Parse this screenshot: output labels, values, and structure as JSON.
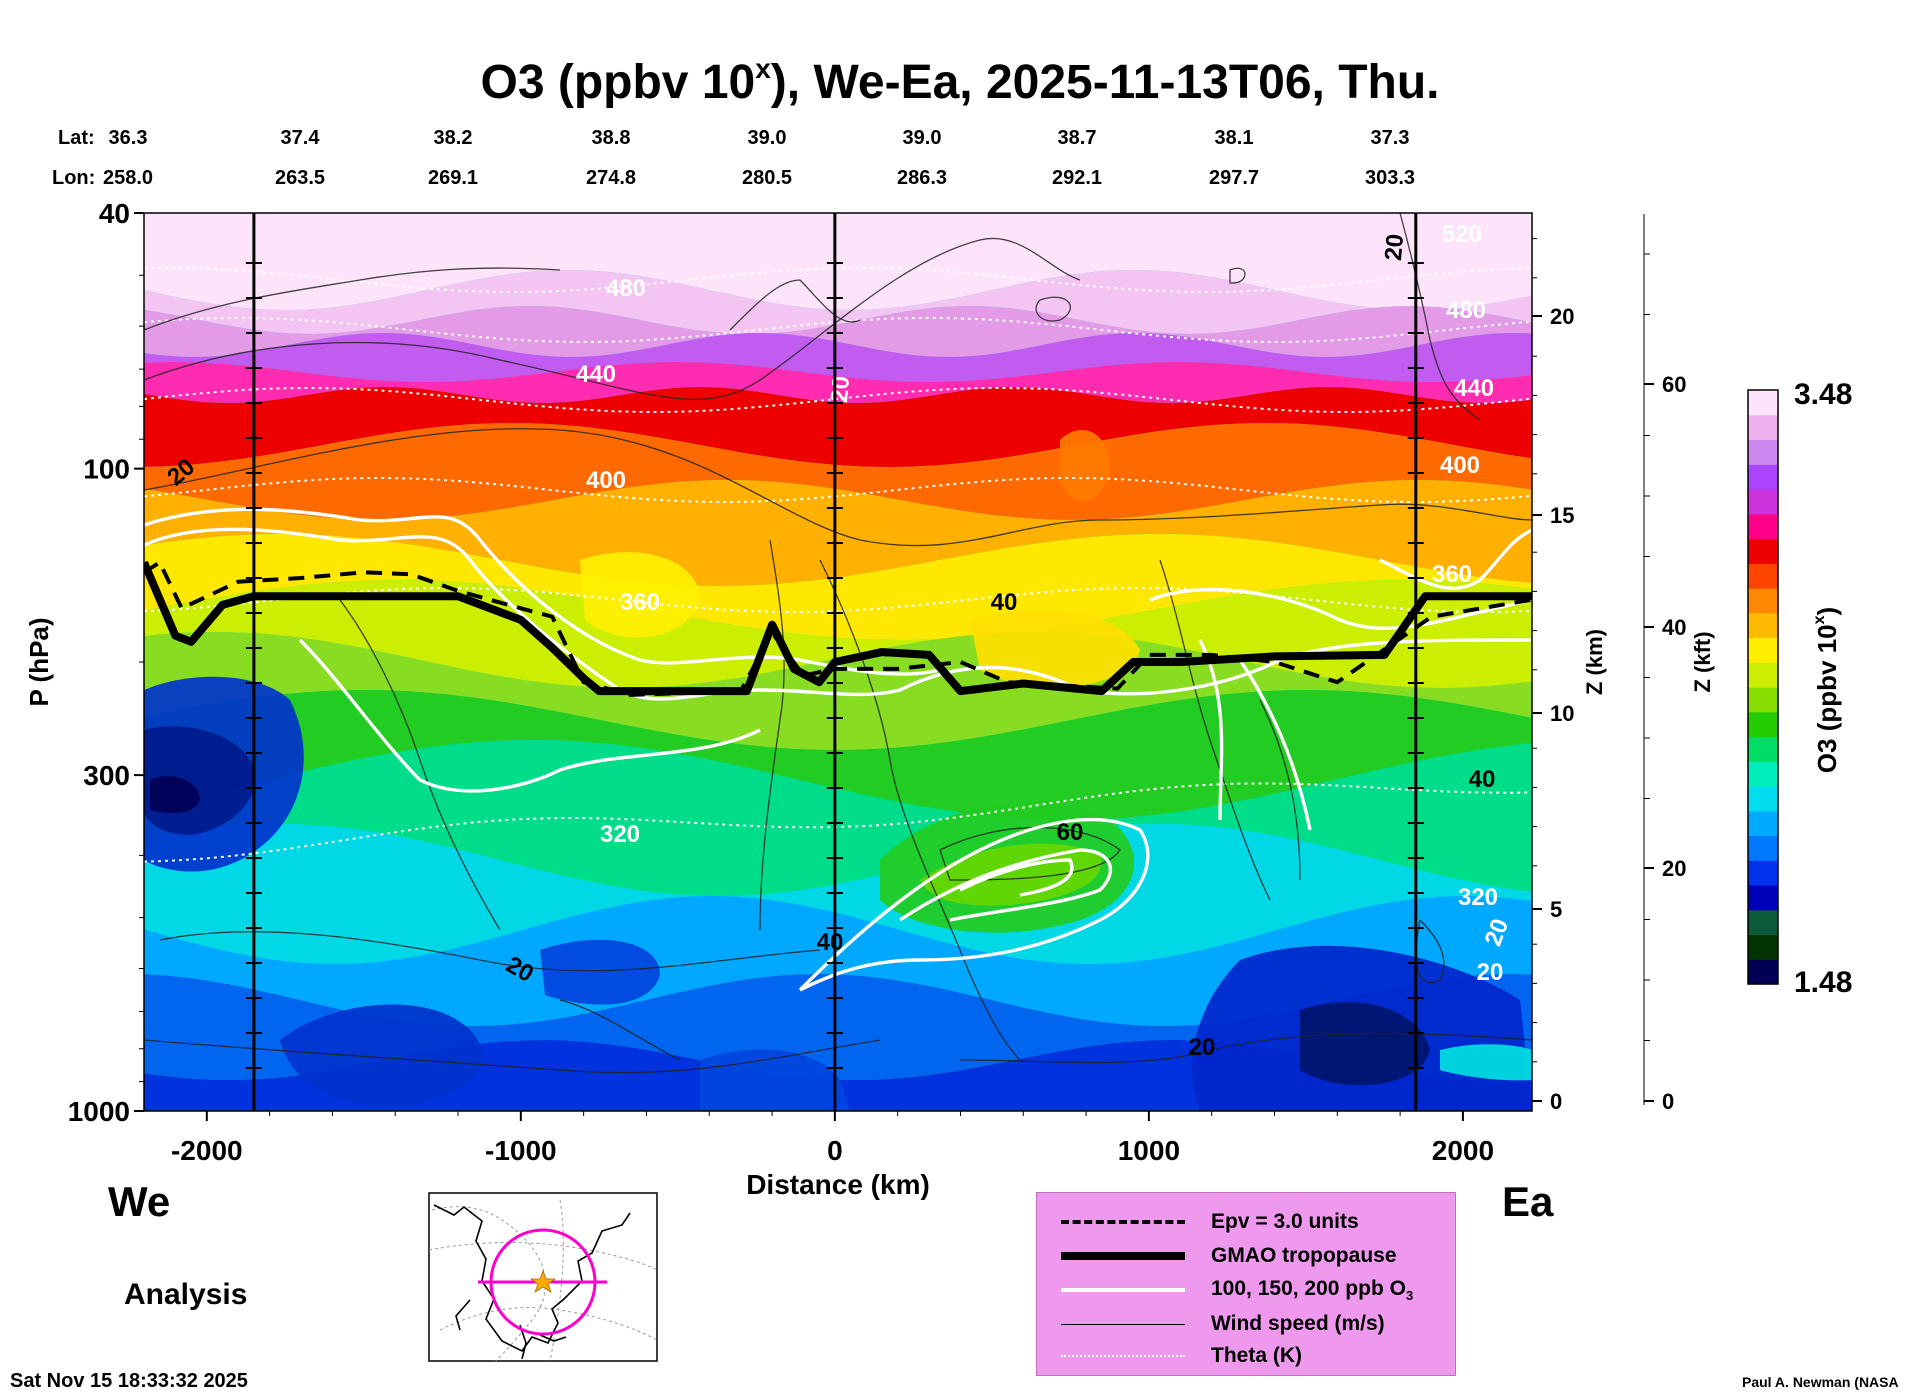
{
  "chart_data": {
    "type": "heatmap",
    "title_prefix": "O3 (ppbv 10",
    "title_sup": "x",
    "title_suffix": "), We-Ea, 2025-11-13T06, Thu.",
    "xlabel": "Distance (km)",
    "ylabel": "P (hPa)",
    "xlim": [
      -2200,
      2220
    ],
    "ylim_hpa": [
      1000,
      40
    ],
    "x_ticks": [
      -2000,
      -1000,
      0,
      1000,
      2000
    ],
    "y_ticks": [
      {
        "value": 40,
        "label": "40"
      },
      {
        "value": 100,
        "label": "100"
      },
      {
        "value": 300,
        "label": "300"
      },
      {
        "value": 1000,
        "label": "1000"
      }
    ],
    "z_km_label": "Z (km)",
    "z_km_ticks": [
      {
        "value": 0,
        "label": "0"
      },
      {
        "value": 5,
        "label": "5"
      },
      {
        "value": 10,
        "label": "10"
      },
      {
        "value": 15,
        "label": "15"
      },
      {
        "value": 20,
        "label": "20"
      }
    ],
    "z_kft_label": "Z (kft)",
    "z_kft_ticks": [
      {
        "value": 0,
        "label": "0"
      },
      {
        "value": 20,
        "label": "20"
      },
      {
        "value": 40,
        "label": "40"
      },
      {
        "value": 60,
        "label": "60"
      }
    ],
    "lat_label": "Lat:",
    "lon_label": "Lon:",
    "coords": [
      {
        "x": -2200,
        "lat": "36.3",
        "lon": "258.0"
      },
      {
        "x": -1700,
        "lat": "37.4",
        "lon": "263.5"
      },
      {
        "x": -1200,
        "lat": "38.2",
        "lon": "269.1"
      },
      {
        "x": -700,
        "lat": "38.8",
        "lon": "274.8"
      },
      {
        "x": -200,
        "lat": "39.0",
        "lon": "280.5"
      },
      {
        "x": 300,
        "lat": "39.0",
        "lon": "286.3"
      },
      {
        "x": 800,
        "lat": "38.7",
        "lon": "292.1"
      },
      {
        "x": 1300,
        "lat": "38.1",
        "lon": "297.7"
      },
      {
        "x": 1800,
        "lat": "37.3",
        "lon": "303.3"
      }
    ],
    "vertical_markers_km": [
      -1850,
      0,
      1850
    ],
    "colorbar": {
      "label_prefix": "O3 (ppbv 10",
      "label_sup": "x",
      "label_suffix": ")",
      "min": 1.48,
      "max": 3.48,
      "min_label": "1.48",
      "max_label": "3.48",
      "colors": [
        "#000055",
        "#003300",
        "#0b5a3a",
        "#0000bb",
        "#0033ee",
        "#0077ff",
        "#00aaff",
        "#00ddee",
        "#00eebb",
        "#00dd66",
        "#22cc00",
        "#88dd00",
        "#ccee00",
        "#ffee00",
        "#ffbb00",
        "#ff8800",
        "#ff4400",
        "#ee0000",
        "#ff0088",
        "#cc33dd",
        "#aa44ff",
        "#cc88ee",
        "#eeb0ee",
        "#fde4fa"
      ]
    },
    "theta_contours_K": [
      {
        "value": 320,
        "label": "320"
      },
      {
        "value": 360,
        "label": "360"
      },
      {
        "value": 400,
        "label": "400"
      },
      {
        "value": 440,
        "label": "440"
      },
      {
        "value": 480,
        "label": "480"
      },
      {
        "value": 520,
        "label": "520"
      }
    ],
    "wind_contours_ms": [
      {
        "value": 20,
        "label": "20"
      },
      {
        "value": 40,
        "label": "40"
      },
      {
        "value": 60,
        "label": "60"
      }
    ],
    "tropopause_hpa": [
      {
        "x": -2200,
        "p": 140
      },
      {
        "x": -2100,
        "p": 182
      },
      {
        "x": -2050,
        "p": 186
      },
      {
        "x": -1950,
        "p": 163
      },
      {
        "x": -1850,
        "p": 158
      },
      {
        "x": -1200,
        "p": 158
      },
      {
        "x": -1000,
        "p": 172
      },
      {
        "x": -900,
        "p": 190
      },
      {
        "x": -800,
        "p": 212
      },
      {
        "x": -750,
        "p": 222
      },
      {
        "x": -280,
        "p": 222
      },
      {
        "x": -200,
        "p": 175
      },
      {
        "x": -130,
        "p": 205
      },
      {
        "x": -50,
        "p": 215
      },
      {
        "x": 0,
        "p": 200
      },
      {
        "x": 150,
        "p": 193
      },
      {
        "x": 300,
        "p": 195
      },
      {
        "x": 400,
        "p": 222
      },
      {
        "x": 600,
        "p": 216
      },
      {
        "x": 850,
        "p": 222
      },
      {
        "x": 950,
        "p": 200
      },
      {
        "x": 1100,
        "p": 200
      },
      {
        "x": 1400,
        "p": 196
      },
      {
        "x": 1750,
        "p": 195
      },
      {
        "x": 1880,
        "p": 158
      },
      {
        "x": 2220,
        "p": 158
      }
    ],
    "epv_hpa": [
      {
        "x": -2200,
        "p": 145
      },
      {
        "x": -2150,
        "p": 140
      },
      {
        "x": -2080,
        "p": 165
      },
      {
        "x": -1900,
        "p": 150
      },
      {
        "x": -1700,
        "p": 148
      },
      {
        "x": -1500,
        "p": 145
      },
      {
        "x": -1350,
        "p": 146
      },
      {
        "x": -1200,
        "p": 155
      },
      {
        "x": -1000,
        "p": 165
      },
      {
        "x": -900,
        "p": 170
      },
      {
        "x": -800,
        "p": 215
      },
      {
        "x": -650,
        "p": 225
      },
      {
        "x": -300,
        "p": 222
      },
      {
        "x": -200,
        "p": 180
      },
      {
        "x": -100,
        "p": 210
      },
      {
        "x": 0,
        "p": 205
      },
      {
        "x": 200,
        "p": 205
      },
      {
        "x": 400,
        "p": 200
      },
      {
        "x": 550,
        "p": 215
      },
      {
        "x": 900,
        "p": 220
      },
      {
        "x": 1000,
        "p": 195
      },
      {
        "x": 1200,
        "p": 195
      },
      {
        "x": 1400,
        "p": 200
      },
      {
        "x": 1600,
        "p": 215
      },
      {
        "x": 1900,
        "p": 170
      },
      {
        "x": 2220,
        "p": 160
      }
    ],
    "legend": [
      {
        "style": "dashed",
        "label": "Epv = 3.0 units"
      },
      {
        "style": "thick",
        "label": "GMAO tropopause"
      },
      {
        "style": "white",
        "label_prefix": "100, 150, 200 ppb O",
        "label_sub": "3"
      },
      {
        "style": "thin",
        "label": "Wind speed (m/s)"
      },
      {
        "style": "dotted",
        "label": "Theta (K)"
      }
    ]
  },
  "labels": {
    "west": "We",
    "east": "Ea",
    "analysis": "Analysis",
    "timestamp": "Sat Nov 15 18:33:32 2025",
    "credit": "Paul A. Newman (NASA"
  }
}
